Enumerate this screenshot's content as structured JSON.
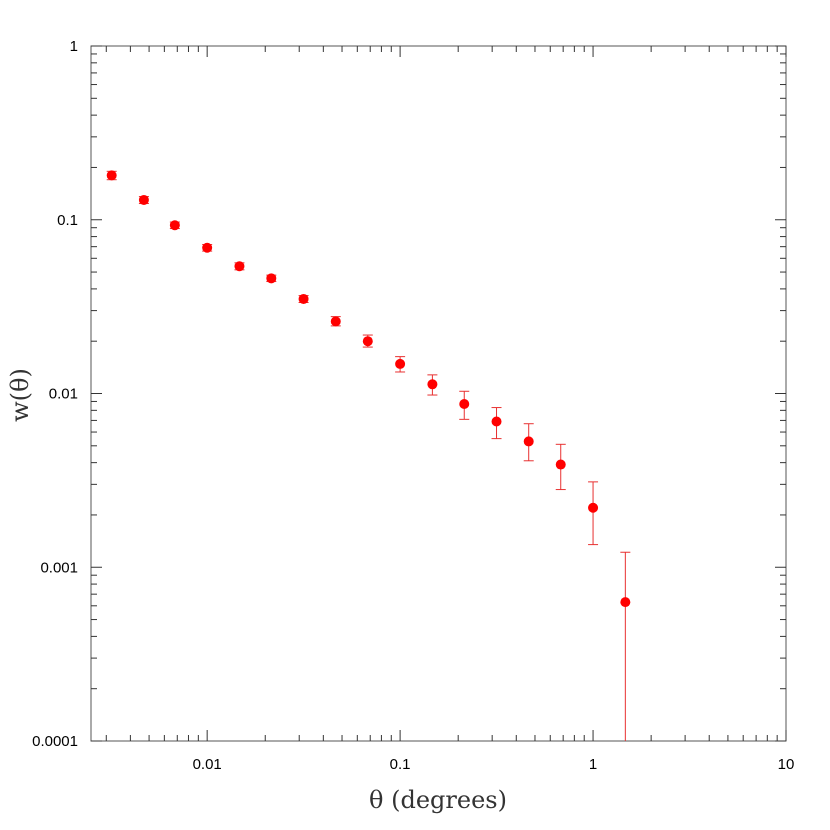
{
  "chart_data": {
    "type": "scatter",
    "title": "",
    "xlabel": "θ (degrees)",
    "ylabel": "w(θ)",
    "xscale": "log",
    "yscale": "log",
    "xlim": [
      0.0025,
      10
    ],
    "ylim": [
      0.0001,
      1
    ],
    "x_tick_labels": [
      "0.01",
      "0.1",
      "1",
      "10"
    ],
    "y_tick_labels": [
      "0.0001",
      "0.001",
      "0.01",
      "0.1",
      "1"
    ],
    "grid": false,
    "legend": "none",
    "series": [
      {
        "marker": "filled-circle",
        "error_bars": true,
        "points": [
          {
            "x": 0.0032,
            "y": 0.18,
            "err_low": 0.17,
            "err_high": 0.19
          },
          {
            "x": 0.0047,
            "y": 0.13,
            "err_low": 0.124,
            "err_high": 0.136
          },
          {
            "x": 0.0068,
            "y": 0.093,
            "err_low": 0.089,
            "err_high": 0.097
          },
          {
            "x": 0.01,
            "y": 0.069,
            "err_low": 0.066,
            "err_high": 0.072
          },
          {
            "x": 0.0147,
            "y": 0.054,
            "err_low": 0.0515,
            "err_high": 0.0565
          },
          {
            "x": 0.0215,
            "y": 0.046,
            "err_low": 0.0441,
            "err_high": 0.048
          },
          {
            "x": 0.0316,
            "y": 0.035,
            "err_low": 0.0334,
            "err_high": 0.0366
          },
          {
            "x": 0.0464,
            "y": 0.026,
            "err_low": 0.0245,
            "err_high": 0.0277
          },
          {
            "x": 0.068,
            "y": 0.02,
            "err_low": 0.0185,
            "err_high": 0.0217
          },
          {
            "x": 0.1,
            "y": 0.0148,
            "err_low": 0.0133,
            "err_high": 0.0163
          },
          {
            "x": 0.147,
            "y": 0.0113,
            "err_low": 0.0098,
            "err_high": 0.0128
          },
          {
            "x": 0.215,
            "y": 0.0087,
            "err_low": 0.0071,
            "err_high": 0.0103
          },
          {
            "x": 0.316,
            "y": 0.0069,
            "err_low": 0.0055,
            "err_high": 0.0083
          },
          {
            "x": 0.464,
            "y": 0.0053,
            "err_low": 0.0041,
            "err_high": 0.0067
          },
          {
            "x": 0.68,
            "y": 0.0039,
            "err_low": 0.0028,
            "err_high": 0.0051
          },
          {
            "x": 1.0,
            "y": 0.0022,
            "err_low": 0.00135,
            "err_high": 0.0031
          },
          {
            "x": 1.47,
            "y": 0.00063,
            "err_low": 0.0001,
            "err_high": 0.00122
          }
        ]
      }
    ],
    "colors": {
      "points": "#ff0000",
      "error_bars": "#e83030",
      "frame": "#555555",
      "ticks": "#333333"
    }
  }
}
